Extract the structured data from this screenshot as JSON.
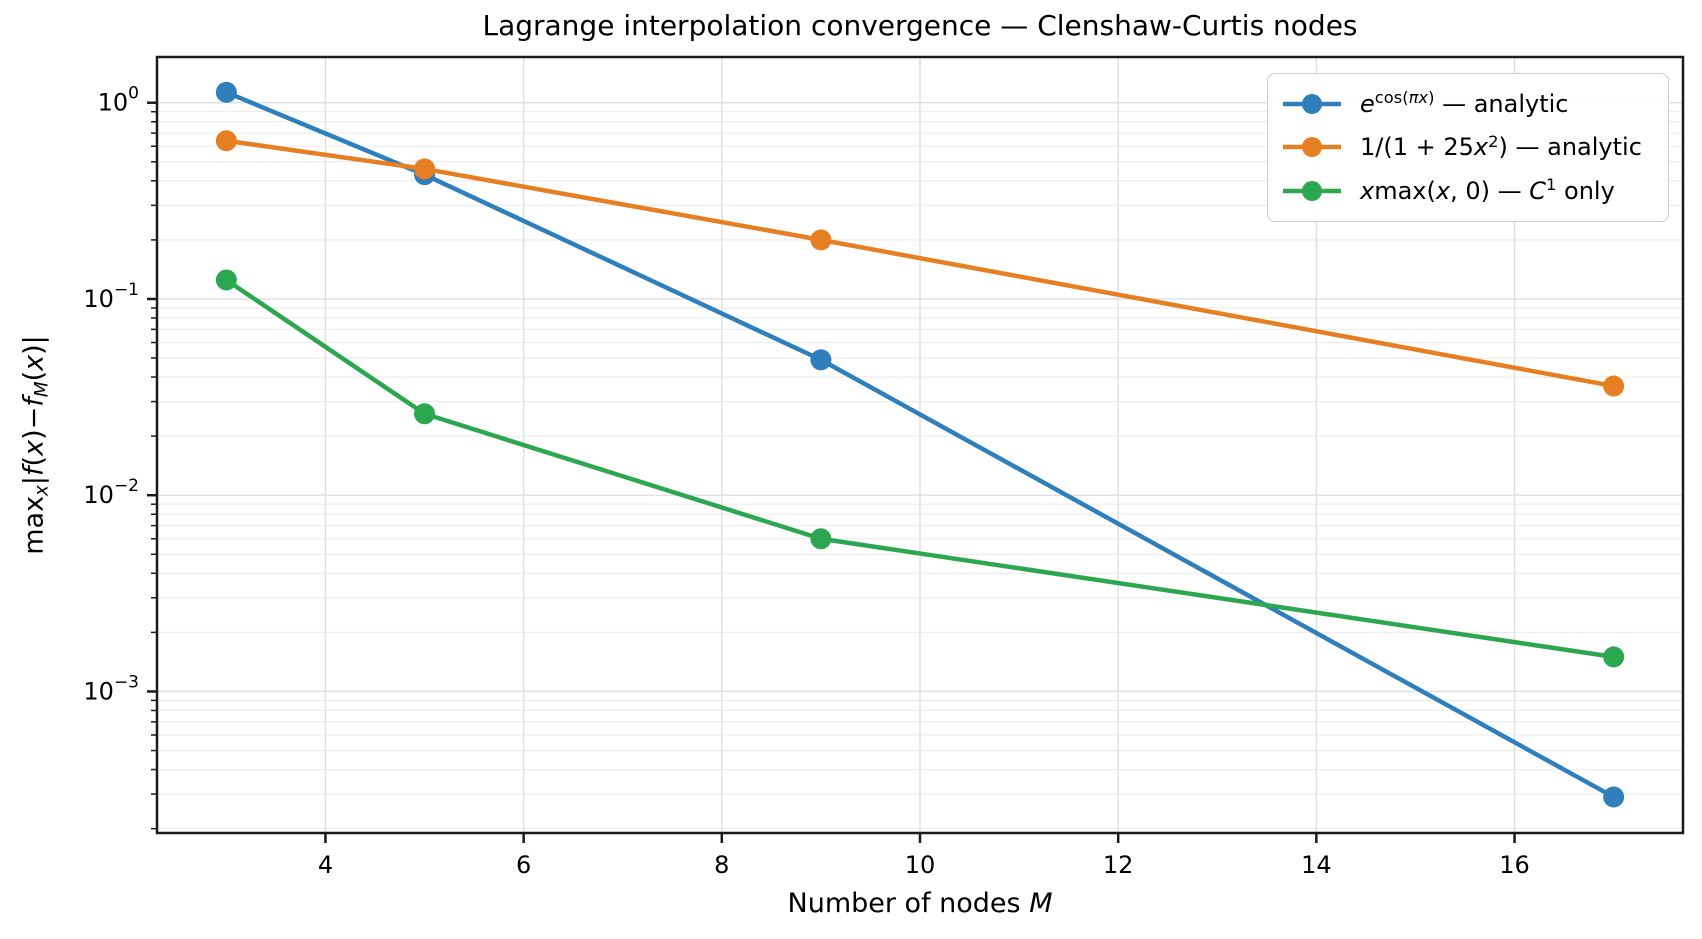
{
  "chart_data": {
    "type": "line",
    "title": "Lagrange interpolation convergence — Clenshaw-Curtis nodes",
    "xlabel": "Number of nodes M",
    "ylabel": "max_x |f(x) − f_M(x)|",
    "yscale": "log",
    "xlim": [
      2.3,
      17.7
    ],
    "ylim": [
      0.00019,
      1.71
    ],
    "grid": true,
    "legend_position": "upper right",
    "x": [
      3,
      5,
      9,
      17
    ],
    "x_ticks": [
      4,
      6,
      8,
      10,
      12,
      14,
      16
    ],
    "y_tick_base": "10",
    "y_ticks": [
      {
        "exp": "0",
        "value": 1
      },
      {
        "exp": "−1",
        "value": 0.1
      },
      {
        "exp": "−2",
        "value": 0.01
      },
      {
        "exp": "−3",
        "value": 0.001
      }
    ],
    "series": [
      {
        "name": "e^cos(πx) — analytic",
        "color": "#2f7fbc",
        "values": [
          1.13,
          0.43,
          0.049,
          0.00029
        ]
      },
      {
        "name": "1/(1+25x²) — analytic",
        "color": "#e67f22",
        "values": [
          0.64,
          0.46,
          0.2,
          0.036
        ]
      },
      {
        "name": "x·max(x,0) — C¹ only",
        "color": "#2ca74f",
        "values": [
          0.125,
          0.026,
          0.006,
          0.0015
        ]
      }
    ],
    "colors": {
      "grid_major": "#dedede",
      "grid_minor": "#ebebeb",
      "spine": "#1a1a1a",
      "text": "#000000",
      "legend_border": "#cccccc"
    }
  },
  "labels": {
    "xlabel_runs": [
      {
        "t": "Number of nodes "
      },
      {
        "t": "M",
        "i": 1
      }
    ],
    "ylabel_runs": [
      {
        "t": "max"
      },
      {
        "t": "x",
        "sub": 1,
        "i": 1
      },
      {
        "t": "|"
      },
      {
        "t": "f",
        "i": 1
      },
      {
        "t": "("
      },
      {
        "t": "x",
        "i": 1
      },
      {
        "t": ")−"
      },
      {
        "t": "f",
        "i": 1
      },
      {
        "t": "M",
        "sub": 1,
        "i": 1
      },
      {
        "t": "("
      },
      {
        "t": "x",
        "i": 1
      },
      {
        "t": ")|"
      }
    ]
  },
  "legend": {
    "items": [
      {
        "runs": [
          {
            "t": "e",
            "i": 1
          },
          {
            "t": "cos(",
            "sup": 1
          },
          {
            "t": "πx",
            "sup": 1,
            "i": 1
          },
          {
            "t": ")",
            "sup": 1
          },
          {
            "t": " — analytic"
          }
        ]
      },
      {
        "runs": [
          {
            "t": "1/(1 + 25"
          },
          {
            "t": "x",
            "i": 1
          },
          {
            "t": "2",
            "sup": 1
          },
          {
            "t": ") — analytic"
          }
        ]
      },
      {
        "runs": [
          {
            "t": "x",
            "i": 1
          },
          {
            "t": "max("
          },
          {
            "t": "x",
            "i": 1
          },
          {
            "t": ", 0) — "
          },
          {
            "t": "C",
            "i": 1
          },
          {
            "t": "1",
            "sup": 1
          },
          {
            "t": " only"
          }
        ]
      }
    ]
  }
}
